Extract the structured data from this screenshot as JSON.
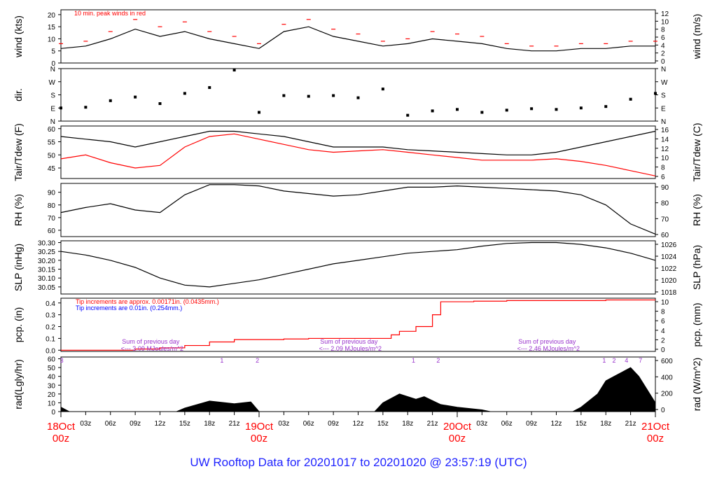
{
  "footer": "UW Rooftop Data for 20201017  to  20201020 @ 23:57:19  (UTC)",
  "colors": {
    "black": "#000000",
    "red": "#ff0000",
    "blue": "#0000ff",
    "purple": "#9933cc",
    "footer": "#1f23ff"
  },
  "chart_data": [
    {
      "type": "line",
      "id": "wind",
      "ylabel_left": "wind (kts)",
      "ylabel_right": "wind (m/s)",
      "ylim": [
        0,
        22
      ],
      "left_ticks": [
        0,
        5,
        10,
        15,
        20
      ],
      "right_ticks": [
        0,
        2,
        4,
        6,
        8,
        10,
        12
      ],
      "annotation": "10 min. peak winds in red",
      "x": [
        0,
        3,
        6,
        9,
        12,
        15,
        18,
        21,
        24,
        27,
        30,
        33,
        36,
        39,
        42,
        45,
        48,
        51,
        54,
        57,
        60,
        63,
        66,
        69,
        72
      ],
      "series": [
        {
          "color": "#000000",
          "values": [
            6,
            7,
            10,
            14,
            11,
            13,
            10,
            8,
            6,
            13,
            15,
            11,
            9,
            7,
            8,
            10,
            9,
            8,
            6,
            5,
            5,
            6,
            6,
            7,
            7
          ]
        },
        {
          "color": "#ff0000",
          "style": "dashes",
          "values": [
            8,
            9,
            13,
            18,
            15,
            17,
            13,
            11,
            8,
            16,
            18,
            14,
            12,
            9,
            10,
            13,
            12,
            11,
            8,
            7,
            7,
            8,
            8,
            9,
            9
          ]
        }
      ]
    },
    {
      "type": "scatter",
      "id": "dir",
      "ylabel_left": "dir.",
      "left_ticks": [
        "N",
        "W",
        "S",
        "E",
        "N"
      ],
      "right_ticks": [
        "N",
        "W",
        "S",
        "E",
        "N"
      ],
      "ylim": [
        0,
        360
      ],
      "x": [
        0,
        3,
        6,
        9,
        12,
        15,
        18,
        21,
        24,
        27,
        30,
        33,
        36,
        39,
        42,
        45,
        48,
        51,
        54,
        57,
        60,
        63,
        66,
        69,
        72
      ],
      "values": [
        90,
        95,
        140,
        165,
        120,
        190,
        230,
        350,
        60,
        175,
        170,
        175,
        160,
        220,
        40,
        70,
        80,
        60,
        75,
        85,
        80,
        90,
        100,
        150,
        190
      ]
    },
    {
      "type": "line",
      "id": "temp",
      "ylabel_left": "Tair/Tdew (F)",
      "ylabel_right": "Tair/Tdew (C)",
      "ylim": [
        41,
        61
      ],
      "left_ticks": [
        45,
        50,
        55,
        60
      ],
      "right_ticks": [
        6,
        8,
        10,
        12,
        14,
        16
      ],
      "x": [
        0,
        3,
        6,
        9,
        12,
        15,
        18,
        21,
        24,
        27,
        30,
        33,
        36,
        39,
        42,
        45,
        48,
        51,
        54,
        57,
        60,
        63,
        66,
        69,
        72
      ],
      "series": [
        {
          "color": "#000000",
          "values": [
            57,
            56,
            55,
            53,
            55,
            57,
            59,
            59,
            58,
            57,
            55,
            53,
            53,
            53,
            52,
            51.5,
            51,
            50.5,
            50,
            50,
            51,
            53,
            55,
            57,
            59
          ]
        },
        {
          "color": "#ff0000",
          "values": [
            48.5,
            50,
            47,
            45,
            46,
            53,
            57,
            58,
            56,
            54,
            52,
            51,
            51.5,
            52,
            51,
            50,
            49,
            48,
            48,
            48,
            48.5,
            47.5,
            46,
            44,
            42
          ]
        }
      ]
    },
    {
      "type": "line",
      "id": "rh",
      "ylabel_left": "RH (%)",
      "ylabel_right": "RH (%)",
      "ylim": [
        55,
        97
      ],
      "left_ticks": [
        60,
        70,
        80,
        90
      ],
      "right_ticks": [
        60,
        70,
        80,
        90
      ],
      "x": [
        0,
        3,
        6,
        9,
        12,
        15,
        18,
        21,
        24,
        27,
        30,
        33,
        36,
        39,
        42,
        45,
        48,
        51,
        54,
        57,
        60,
        63,
        66,
        69,
        72
      ],
      "series": [
        {
          "color": "#000000",
          "values": [
            74,
            78,
            81,
            76,
            74,
            88,
            96,
            96,
            95,
            91,
            89,
            87,
            88,
            91,
            94,
            94,
            95,
            94,
            93,
            92,
            91,
            88,
            80,
            65,
            57
          ]
        }
      ]
    },
    {
      "type": "line",
      "id": "slp",
      "ylabel_left": "SLP (inHg)",
      "ylabel_right": "SLP (hPa)",
      "ylim": [
        30.01,
        30.31
      ],
      "left_ticks": [
        30.05,
        30.1,
        30.15,
        30.2,
        30.25,
        30.3
      ],
      "right_ticks": [
        1018,
        1020,
        1022,
        1024,
        1026
      ],
      "x": [
        0,
        3,
        6,
        9,
        12,
        15,
        18,
        21,
        24,
        27,
        30,
        33,
        36,
        39,
        42,
        45,
        48,
        51,
        54,
        57,
        60,
        63,
        66,
        69,
        72
      ],
      "series": [
        {
          "color": "#000000",
          "values": [
            30.25,
            30.23,
            30.2,
            30.16,
            30.1,
            30.06,
            30.05,
            30.07,
            30.09,
            30.12,
            30.15,
            30.18,
            30.2,
            30.22,
            30.24,
            30.25,
            30.26,
            30.28,
            30.295,
            30.3,
            30.3,
            30.29,
            30.27,
            30.24,
            30.2
          ]
        }
      ]
    },
    {
      "type": "area",
      "id": "pcp",
      "ylabel_left": "pcp. (in)",
      "ylabel_right": "pcp. (mm)",
      "ylim": [
        -0.01,
        0.44
      ],
      "left_ticks": [
        0.0,
        0.1,
        0.2,
        0.3,
        0.4
      ],
      "right_ticks": [
        0,
        2,
        4,
        6,
        8,
        10
      ],
      "notes": [
        {
          "text": "Tip increments are approx. 0.00171in. (0.0435mm.)",
          "color": "#ff0000"
        },
        {
          "text": "Tip increments are 0.01in. (0.254mm.)",
          "color": "#0000ff"
        }
      ],
      "x": [
        0,
        3,
        6,
        9,
        12,
        15,
        18,
        21,
        24,
        27,
        30,
        33,
        36,
        39,
        40,
        41,
        43,
        45,
        46,
        48,
        50,
        54,
        60,
        66,
        72
      ],
      "series": [
        {
          "color": "#ff0000",
          "values": [
            0,
            0,
            0,
            0.01,
            0.02,
            0.04,
            0.07,
            0.09,
            0.09,
            0.095,
            0.1,
            0.1,
            0.1,
            0.1,
            0.13,
            0.16,
            0.2,
            0.3,
            0.41,
            0.41,
            0.415,
            0.42,
            0.42,
            0.425,
            0.425
          ]
        }
      ]
    },
    {
      "type": "area",
      "id": "rad",
      "ylabel_left": "rad(Lgly/hr)",
      "ylabel_right": "rad (W/m^2)",
      "ylim": [
        0,
        62
      ],
      "left_ticks": [
        0,
        10,
        20,
        30,
        40,
        50,
        60
      ],
      "right_ticks": [
        0,
        200,
        400,
        600
      ],
      "annotations": [
        {
          "text": "Sum of previous day",
          "x": 8
        },
        {
          "text": "<--- 3.09 MJoules/m^2",
          "x": 8
        },
        {
          "text": "Sum of previous day",
          "x": 32
        },
        {
          "text": "<--- 2.09 MJoules/m^2",
          "x": 32
        },
        {
          "text": "Sum of previous day",
          "x": 56
        },
        {
          "text": "<--- 2.46 MJoules/m^2",
          "x": 56
        }
      ],
      "markers": [
        {
          "label": "3",
          "x": 0.1
        },
        {
          "label": "1",
          "x": 19.5
        },
        {
          "label": "2",
          "x": 23.8
        },
        {
          "label": "1",
          "x": 42.7
        },
        {
          "label": "2",
          "x": 45.7
        },
        {
          "label": "1",
          "x": 65.8
        },
        {
          "label": "2",
          "x": 67
        },
        {
          "label": "4",
          "x": 68.5
        },
        {
          "label": "7",
          "x": 70.2
        }
      ],
      "x": [
        0,
        1,
        14,
        15,
        18,
        21,
        23,
        24,
        38,
        39,
        41,
        43,
        44,
        46,
        48,
        51,
        52,
        62,
        63,
        65,
        66,
        67,
        68,
        69,
        70,
        71,
        72
      ],
      "series": [
        {
          "color": "#000000",
          "values": [
            5,
            0,
            0,
            4,
            12,
            9,
            11,
            0,
            0,
            10,
            20,
            14,
            17,
            8,
            5,
            2,
            0,
            0,
            5,
            20,
            35,
            40,
            45,
            50,
            40,
            25,
            10
          ]
        }
      ]
    }
  ],
  "xaxis": {
    "hour_ticks": [
      {
        "h": 3,
        "label": "03z"
      },
      {
        "h": 6,
        "label": "06z"
      },
      {
        "h": 9,
        "label": "09z"
      },
      {
        "h": 12,
        "label": "12z"
      },
      {
        "h": 15,
        "label": "15z"
      },
      {
        "h": 18,
        "label": "18z"
      },
      {
        "h": 21,
        "label": "21z"
      },
      {
        "h": 27,
        "label": "03z"
      },
      {
        "h": 30,
        "label": "06z"
      },
      {
        "h": 33,
        "label": "09z"
      },
      {
        "h": 36,
        "label": "12z"
      },
      {
        "h": 39,
        "label": "15z"
      },
      {
        "h": 42,
        "label": "18z"
      },
      {
        "h": 45,
        "label": "21z"
      },
      {
        "h": 51,
        "label": "03z"
      },
      {
        "h": 54,
        "label": "06z"
      },
      {
        "h": 57,
        "label": "09z"
      },
      {
        "h": 60,
        "label": "12z"
      },
      {
        "h": 63,
        "label": "15z"
      },
      {
        "h": 66,
        "label": "18z"
      },
      {
        "h": 69,
        "label": "21z"
      }
    ],
    "day_ticks": [
      {
        "h": 0,
        "day": "18Oct",
        "zulu": "00z"
      },
      {
        "h": 24,
        "day": "19Oct",
        "zulu": "00z"
      },
      {
        "h": 48,
        "day": "20Oct",
        "zulu": "00z"
      },
      {
        "h": 72,
        "day": "21Oct",
        "zulu": "00z"
      }
    ]
  }
}
